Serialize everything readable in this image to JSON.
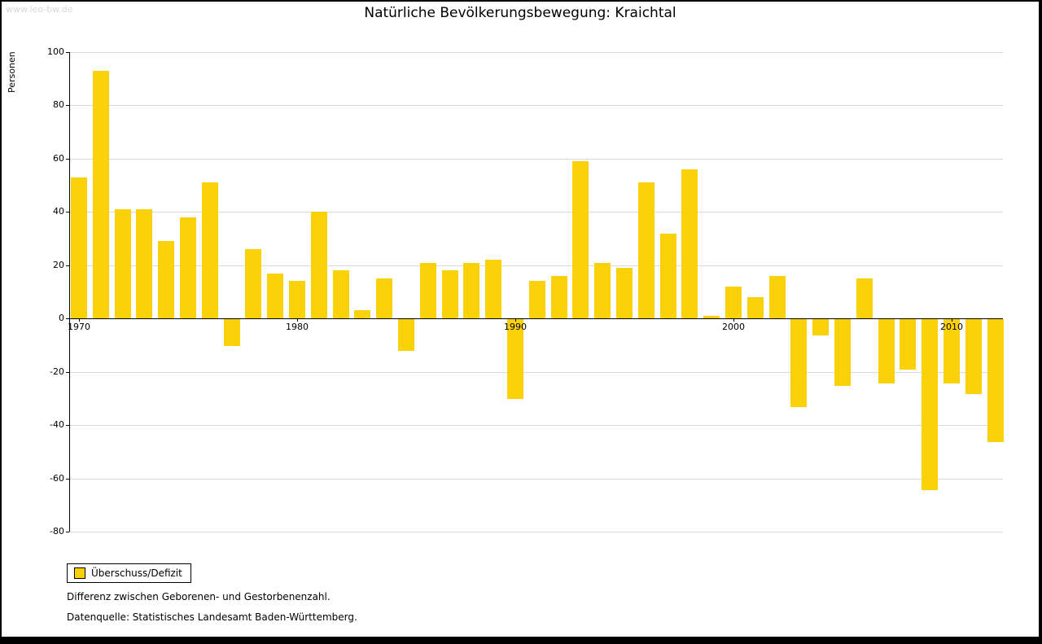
{
  "watermark": "www.leo-bw.de",
  "title": "Natürliche Bevölkerungsbewegung: Kraichtal",
  "legend": {
    "label": "Überschuss/Defizit"
  },
  "footnotes": {
    "line1": "Differenz zwischen Geborenen- und Gestorbenenzahl.",
    "line2": "Datenquelle: Statistisches Landesamt Baden-Württemberg."
  },
  "colors": {
    "bar": "#fbd109",
    "grid": "#d9d9d9",
    "axis": "#000000",
    "watermark": "#d8d8d8"
  },
  "chart_data": {
    "type": "bar",
    "title": "Natürliche Bevölkerungsbewegung: Kraichtal",
    "ylabel": "Personen",
    "series_name": "Überschuss/Defizit",
    "ylim": [
      -80,
      100
    ],
    "ytick_step": 20,
    "grid": true,
    "legend_position": "bottom-left",
    "x_tick_years": [
      1970,
      1980,
      1990,
      2000,
      2010
    ],
    "years": [
      1970,
      1971,
      1972,
      1973,
      1974,
      1975,
      1976,
      1977,
      1978,
      1979,
      1980,
      1981,
      1982,
      1983,
      1984,
      1985,
      1986,
      1987,
      1988,
      1989,
      1990,
      1991,
      1992,
      1993,
      1994,
      1995,
      1996,
      1997,
      1998,
      1999,
      2000,
      2001,
      2002,
      2003,
      2004,
      2005,
      2006,
      2007,
      2008,
      2009,
      2010,
      2011,
      2012
    ],
    "values": [
      53,
      93,
      41,
      41,
      29,
      38,
      51,
      -10,
      26,
      17,
      14,
      40,
      18,
      3,
      15,
      -12,
      21,
      18,
      21,
      22,
      -30,
      14,
      16,
      59,
      21,
      19,
      51,
      32,
      56,
      1,
      12,
      8,
      16,
      -33,
      -6,
      -25,
      15,
      -24,
      -19,
      -64,
      -24,
      -28,
      -46
    ]
  }
}
